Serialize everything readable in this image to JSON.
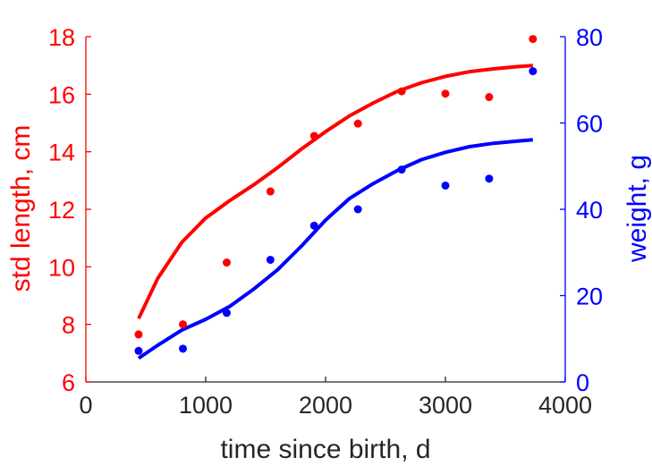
{
  "chart_data": {
    "type": "scatter",
    "xlabel": "time since birth, d",
    "xlim": [
      0,
      4000
    ],
    "xticks": [
      0,
      1000,
      2000,
      3000,
      4000
    ],
    "left_axis": {
      "label": "std length, cm",
      "color": "#ff0000",
      "lim": [
        6,
        18
      ],
      "ticks": [
        6,
        8,
        10,
        12,
        14,
        16,
        18
      ]
    },
    "right_axis": {
      "label": "weight, g",
      "color": "#0000ff",
      "lim": [
        0,
        80
      ],
      "ticks": [
        0,
        20,
        40,
        60,
        80
      ]
    },
    "grid": false,
    "series": [
      {
        "axis": "left",
        "color": "#ff0000",
        "points": [
          [
            440,
            7.65
          ],
          [
            810,
            8.0
          ],
          [
            1175,
            10.15
          ],
          [
            1540,
            12.62
          ],
          [
            1905,
            14.55
          ],
          [
            2270,
            14.98
          ],
          [
            2635,
            16.1
          ],
          [
            3000,
            16.02
          ],
          [
            3365,
            15.9
          ],
          [
            3730,
            17.92
          ]
        ],
        "fit": [
          [
            440,
            8.2
          ],
          [
            600,
            9.6
          ],
          [
            800,
            10.85
          ],
          [
            1000,
            11.7
          ],
          [
            1200,
            12.3
          ],
          [
            1400,
            12.85
          ],
          [
            1600,
            13.45
          ],
          [
            1800,
            14.1
          ],
          [
            2000,
            14.7
          ],
          [
            2200,
            15.25
          ],
          [
            2400,
            15.7
          ],
          [
            2600,
            16.1
          ],
          [
            2800,
            16.4
          ],
          [
            3000,
            16.62
          ],
          [
            3200,
            16.78
          ],
          [
            3400,
            16.88
          ],
          [
            3600,
            16.96
          ],
          [
            3730,
            17.0
          ]
        ]
      },
      {
        "axis": "right",
        "color": "#0000ff",
        "points": [
          [
            440,
            7.2
          ],
          [
            810,
            7.7
          ],
          [
            1175,
            16.0
          ],
          [
            1540,
            28.3
          ],
          [
            1905,
            36.2
          ],
          [
            2270,
            40.0
          ],
          [
            2635,
            49.2
          ],
          [
            3000,
            45.5
          ],
          [
            3365,
            47.1
          ],
          [
            3730,
            72.0
          ]
        ],
        "fit": [
          [
            440,
            5.5
          ],
          [
            600,
            8.5
          ],
          [
            800,
            12.0
          ],
          [
            1000,
            14.5
          ],
          [
            1200,
            17.5
          ],
          [
            1400,
            21.5
          ],
          [
            1600,
            26.0
          ],
          [
            1800,
            31.5
          ],
          [
            2000,
            37.5
          ],
          [
            2200,
            42.5
          ],
          [
            2400,
            46.0
          ],
          [
            2600,
            49.0
          ],
          [
            2800,
            51.5
          ],
          [
            3000,
            53.2
          ],
          [
            3200,
            54.5
          ],
          [
            3400,
            55.3
          ],
          [
            3600,
            55.8
          ],
          [
            3730,
            56.1
          ]
        ]
      }
    ]
  }
}
